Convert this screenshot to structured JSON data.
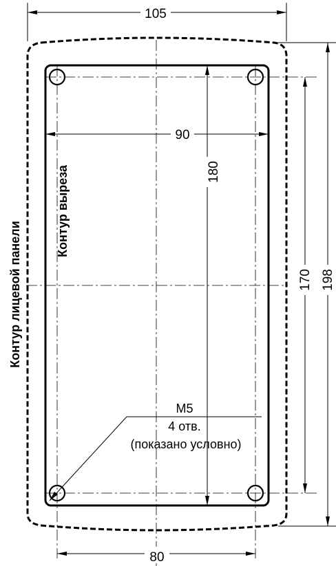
{
  "dimensions": {
    "panel_width": "105",
    "cutout_width": "90",
    "hole_spacing_horizontal": "80",
    "hole_spacing_vertical": "180",
    "cutout_height": "170",
    "panel_height": "198"
  },
  "labels": {
    "panel_outline": "Контур лицевой панели",
    "cutout_outline": "Контур выреза"
  },
  "hole_note": {
    "thread": "M5",
    "count": "4 отв.",
    "remark": "(показано условно)"
  }
}
